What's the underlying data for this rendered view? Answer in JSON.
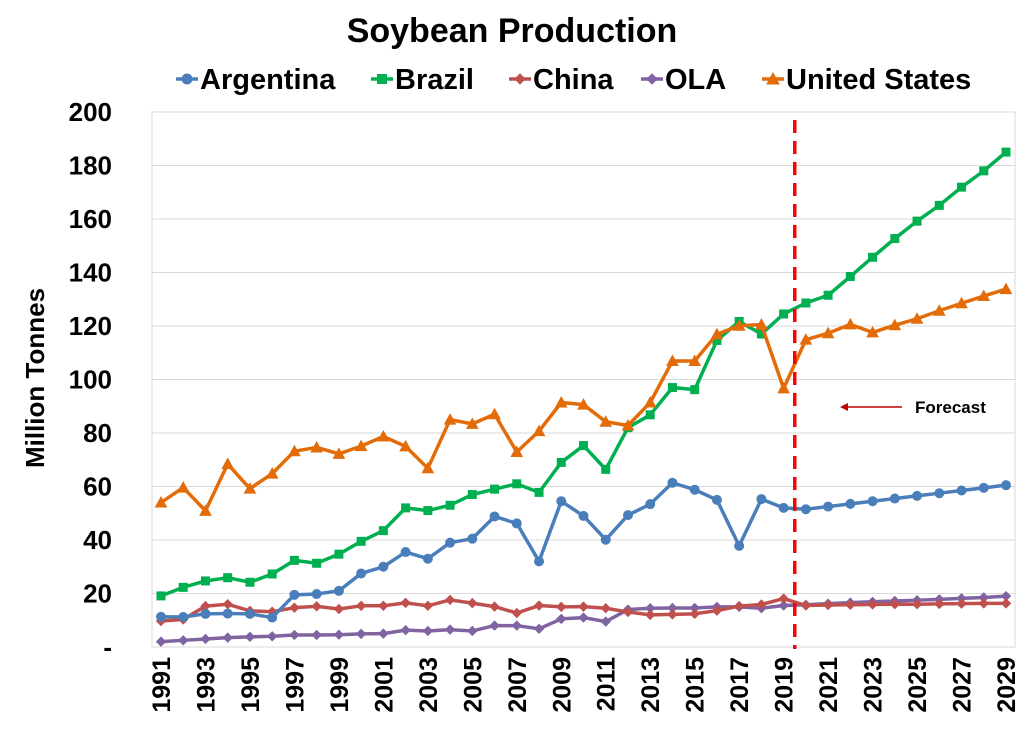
{
  "chart_data": {
    "type": "line",
    "title": "Soybean Production",
    "ylabel": "Million Tonnes",
    "xlabel": "",
    "ylim": [
      0,
      200
    ],
    "yticks": [
      0,
      20,
      40,
      60,
      80,
      100,
      120,
      140,
      160,
      180,
      200
    ],
    "ytick_labels": [
      "-",
      "20",
      "40",
      "60",
      "80",
      "100",
      "120",
      "140",
      "160",
      "180",
      "200"
    ],
    "x": [
      1991,
      1992,
      1993,
      1994,
      1995,
      1996,
      1997,
      1998,
      1999,
      2000,
      2001,
      2002,
      2003,
      2004,
      2005,
      2006,
      2007,
      2008,
      2009,
      2010,
      2011,
      2012,
      2013,
      2014,
      2015,
      2016,
      2017,
      2018,
      2019,
      2020,
      2021,
      2022,
      2023,
      2024,
      2025,
      2026,
      2027,
      2028,
      2029
    ],
    "xtick_labels": [
      "1991",
      "1993",
      "1995",
      "1997",
      "1999",
      "2001",
      "2003",
      "2005",
      "2007",
      "2009",
      "2011",
      "2013",
      "2015",
      "2017",
      "2019",
      "2021",
      "2023",
      "2025",
      "2027",
      "2029"
    ],
    "grid": "horizontal",
    "legend_position": "top",
    "series": [
      {
        "name": "Argentina",
        "color": "#4a7ebb",
        "marker": "circle",
        "values": [
          11.3,
          11.2,
          12.4,
          12.5,
          12.4,
          11.0,
          19.5,
          19.8,
          21.0,
          27.5,
          30.0,
          35.5,
          33.0,
          39.0,
          40.5,
          48.8,
          46.2,
          32.0,
          54.5,
          49.0,
          40.1,
          49.3,
          53.4,
          61.4,
          58.8,
          55.0,
          37.8,
          55.3,
          52.0,
          51.5,
          52.5,
          53.5,
          54.5,
          55.5,
          56.5,
          57.5,
          58.5,
          59.5,
          60.5
        ]
      },
      {
        "name": "Brazil",
        "color": "#00b050",
        "marker": "square",
        "values": [
          19.1,
          22.3,
          24.7,
          25.9,
          24.2,
          27.3,
          32.4,
          31.3,
          34.7,
          39.5,
          43.5,
          52.0,
          51.0,
          53.0,
          57.0,
          59.0,
          61.0,
          57.8,
          69.0,
          75.3,
          66.4,
          82.0,
          86.8,
          97.0,
          96.2,
          114.6,
          121.7,
          117.0,
          124.5,
          128.6,
          131.5,
          138.5,
          145.7,
          152.7,
          159.2,
          165.1,
          171.9,
          178.0,
          185.0
        ]
      },
      {
        "name": "China",
        "color": "#c0504d",
        "marker": "diamond",
        "values": [
          9.7,
          10.3,
          15.3,
          16.0,
          13.5,
          13.2,
          14.7,
          15.2,
          14.2,
          15.4,
          15.4,
          16.5,
          15.4,
          17.6,
          16.4,
          15.1,
          12.7,
          15.5,
          15.0,
          15.1,
          14.5,
          13.1,
          12.0,
          12.2,
          12.4,
          13.6,
          15.3,
          15.9,
          18.1,
          15.5,
          15.7,
          15.8,
          15.9,
          16.0,
          16.0,
          16.1,
          16.2,
          16.3,
          16.3
        ]
      },
      {
        "name": "OLA",
        "color": "#8064a2",
        "marker": "diamond",
        "values": [
          2.0,
          2.5,
          3.0,
          3.5,
          3.8,
          4.0,
          4.5,
          4.5,
          4.6,
          4.9,
          5.0,
          6.3,
          6.0,
          6.5,
          6.0,
          8.0,
          8.0,
          6.8,
          10.5,
          11.0,
          9.5,
          14.0,
          14.5,
          14.6,
          14.6,
          15.0,
          15.0,
          14.5,
          15.5,
          15.8,
          16.2,
          16.6,
          16.9,
          17.2,
          17.5,
          17.8,
          18.2,
          18.5,
          19.0
        ]
      },
      {
        "name": "United States",
        "color": "#e36c09",
        "marker": "triangle",
        "values": [
          54.0,
          59.6,
          50.9,
          68.4,
          59.2,
          64.8,
          73.2,
          74.6,
          72.2,
          75.1,
          78.7,
          75.0,
          66.8,
          85.0,
          83.4,
          87.0,
          72.9,
          80.7,
          91.4,
          90.6,
          84.2,
          82.8,
          91.4,
          106.9,
          106.9,
          116.9,
          120.1,
          120.5,
          96.7,
          114.9,
          117.3,
          120.6,
          117.6,
          120.3,
          122.7,
          125.7,
          128.5,
          131.2,
          133.8
        ]
      }
    ],
    "annotations": [
      {
        "label": "Forecast",
        "divider_year": 2019.5,
        "divider_color": "#ff0000",
        "arrow_color": "#c00000"
      }
    ]
  }
}
